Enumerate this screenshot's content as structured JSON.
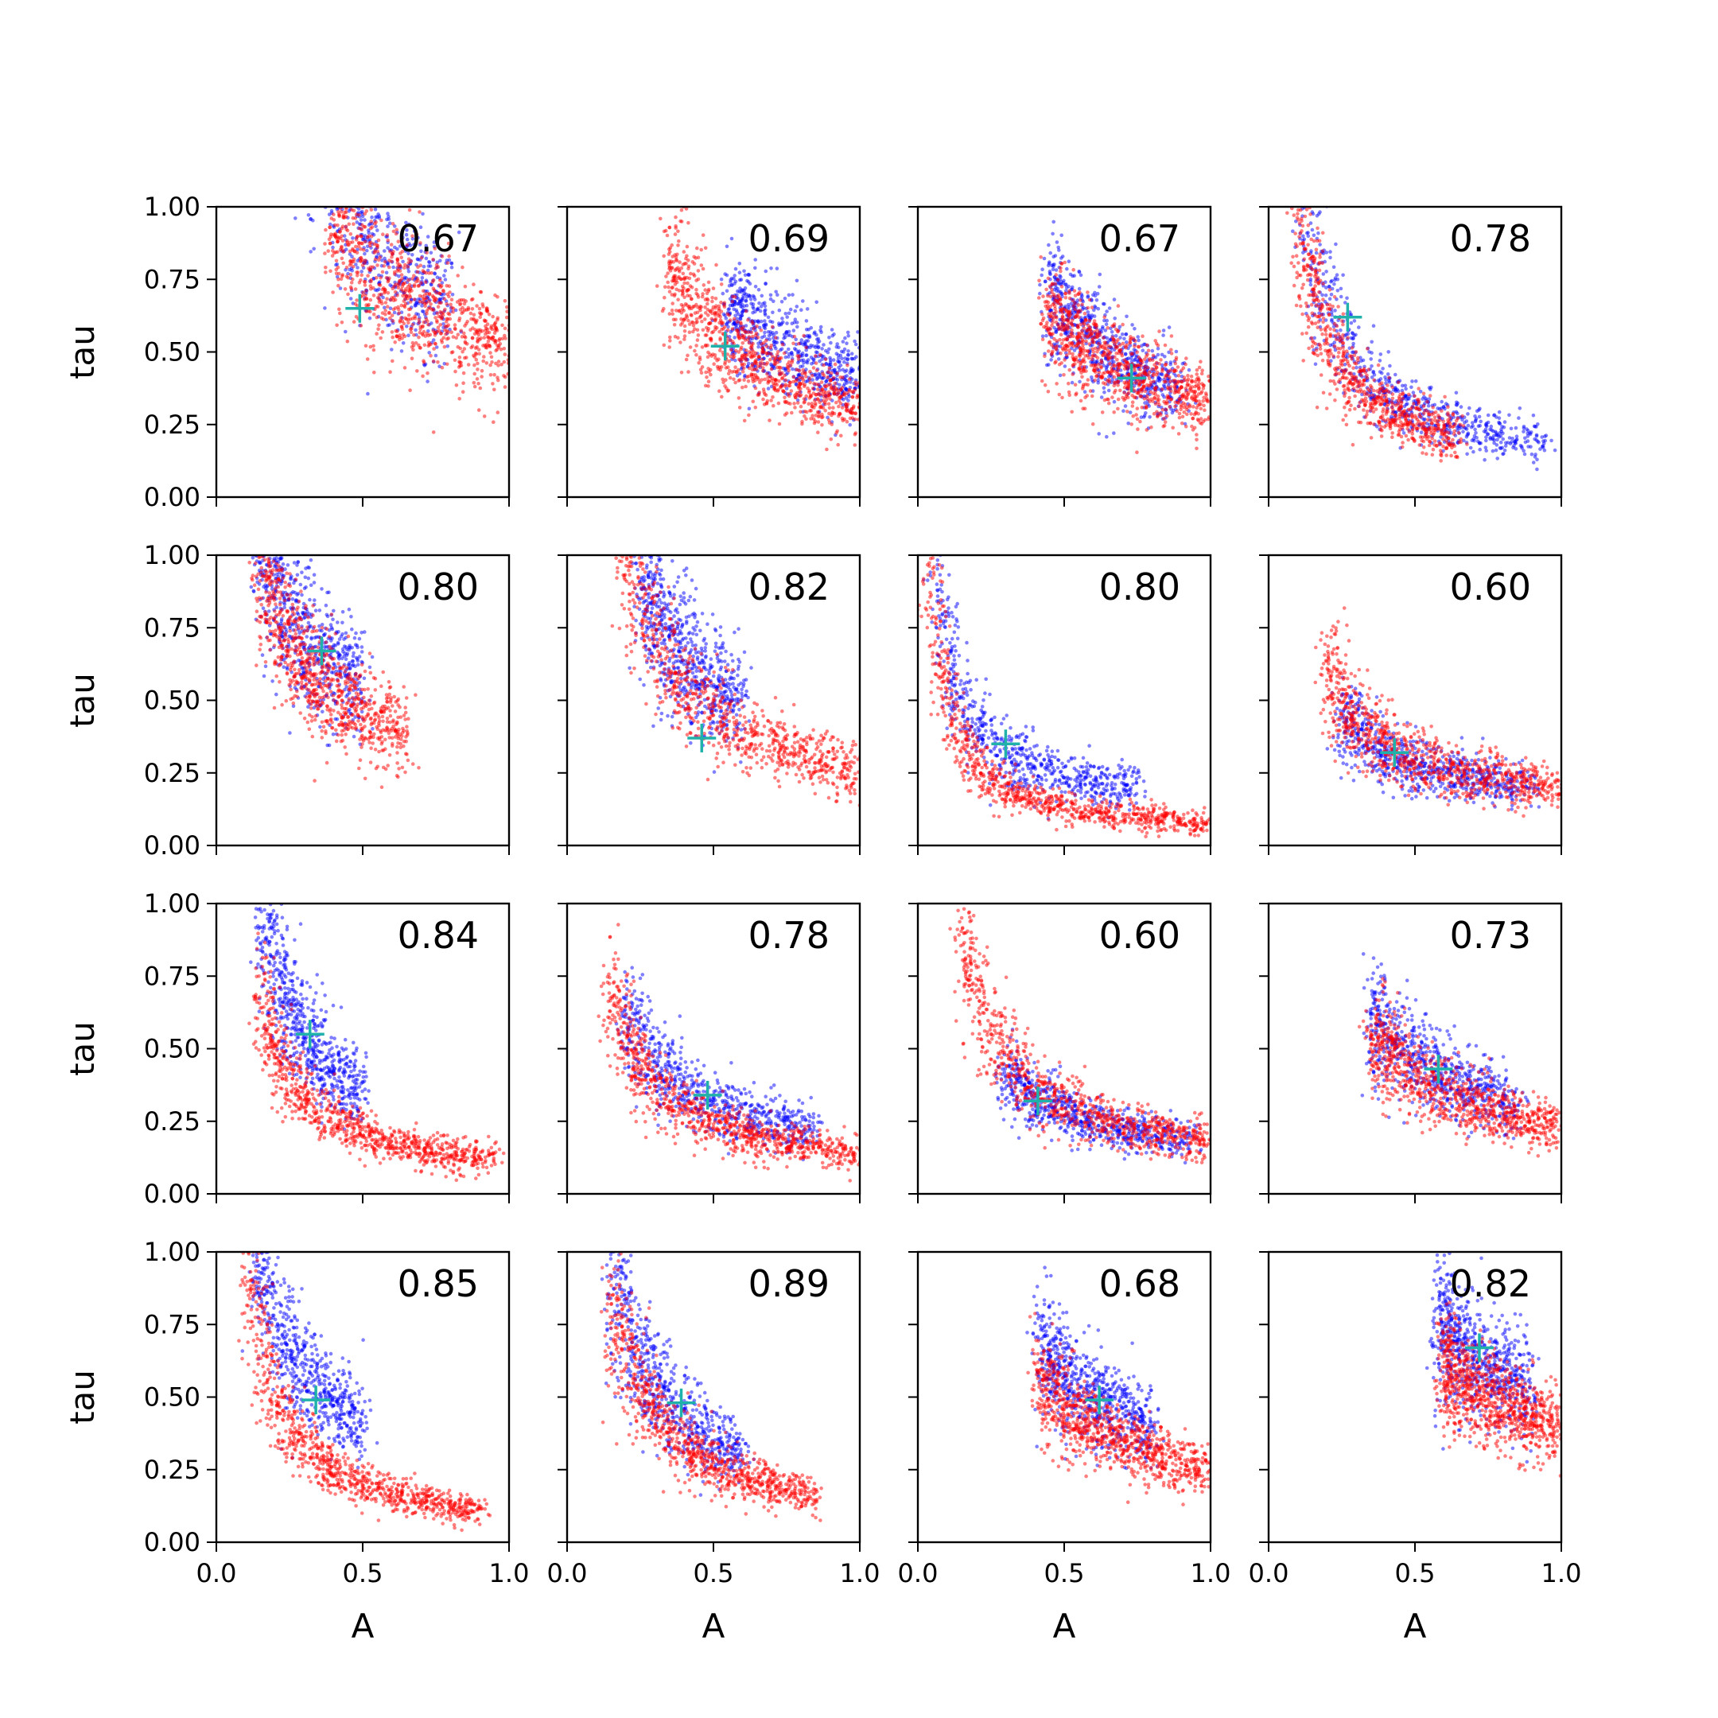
{
  "chart_data": {
    "type": "scatter",
    "layout": {
      "rows": 4,
      "cols": 4
    },
    "xlabel": "A",
    "ylabel": "tau",
    "xlim": [
      0.0,
      1.0
    ],
    "ylim": [
      0.0,
      1.0
    ],
    "xticks": [
      "0.0",
      "0.5",
      "1.0"
    ],
    "yticks": [
      "0.00",
      "0.25",
      "0.50",
      "0.75",
      "1.00"
    ],
    "grid": false,
    "colors": {
      "series_a": "#0000ff",
      "series_b": "#ff0000",
      "marker": "#20b2aa"
    },
    "panels": [
      {
        "label": "0.67",
        "marker": [
          0.49,
          0.65
        ],
        "blue": {
          "a": 0.39,
          "b": 0.17,
          "x0": 0.3,
          "x1": 0.8
        },
        "red": {
          "a": 0.32,
          "b": 0.19,
          "x0": 0.4,
          "x1": 1.0
        }
      },
      {
        "label": "0.69",
        "marker": [
          0.54,
          0.52
        ],
        "blue": {
          "a": 0.3,
          "b": 0.11,
          "x0": 0.55,
          "x1": 1.0
        },
        "red": {
          "a": 0.28,
          "b": 0.02,
          "x0": 0.35,
          "x1": 1.0
        }
      },
      {
        "label": "0.67",
        "marker": [
          0.73,
          0.41
        ],
        "blue": {
          "a": 0.32,
          "b": 0.01,
          "x0": 0.45,
          "x1": 0.9
        },
        "red": {
          "a": 0.25,
          "b": 0.08,
          "x0": 0.45,
          "x1": 1.0
        }
      },
      {
        "label": "0.78",
        "marker": [
          0.27,
          0.62
        ],
        "blue": {
          "a": 0.12,
          "b": 0.06,
          "x0": 0.12,
          "x1": 0.95
        },
        "red": {
          "a": 0.1,
          "b": 0.06,
          "x0": 0.05,
          "x1": 0.65
        }
      },
      {
        "label": "0.80",
        "marker": [
          0.36,
          0.67
        ],
        "blue": {
          "a": 0.13,
          "b": 0.3,
          "x0": 0.15,
          "x1": 0.5
        },
        "red": {
          "a": 0.12,
          "b": 0.22,
          "x0": 0.15,
          "x1": 0.65
        }
      },
      {
        "label": "0.82",
        "marker": [
          0.46,
          0.37
        ],
        "blue": {
          "a": 0.18,
          "b": 0.2,
          "x0": 0.25,
          "x1": 0.6
        },
        "red": {
          "a": 0.19,
          "b": 0.08,
          "x0": 0.15,
          "x1": 1.0
        }
      },
      {
        "label": "0.80",
        "marker": [
          0.3,
          0.35
        ],
        "blue": {
          "a": 0.06,
          "b": 0.12,
          "x0": 0.05,
          "x1": 0.75
        },
        "red": {
          "a": 0.05,
          "b": 0.03,
          "x0": 0.02,
          "x1": 1.0
        }
      },
      {
        "label": "0.60",
        "marker": [
          0.43,
          0.32
        ],
        "blue": {
          "a": 0.08,
          "b": 0.12,
          "x0": 0.25,
          "x1": 0.9
        },
        "red": {
          "a": 0.1,
          "b": 0.1,
          "x0": 0.2,
          "x1": 1.0
        }
      },
      {
        "label": "0.84",
        "marker": [
          0.32,
          0.55
        ],
        "blue": {
          "a": 0.15,
          "b": 0.05,
          "x0": 0.15,
          "x1": 0.5
        },
        "red": {
          "a": 0.1,
          "b": 0.01,
          "x0": 0.15,
          "x1": 0.95
        }
      },
      {
        "label": "0.78",
        "marker": [
          0.48,
          0.34
        ],
        "blue": {
          "a": 0.11,
          "b": 0.09,
          "x0": 0.2,
          "x1": 0.85
        },
        "red": {
          "a": 0.1,
          "b": 0.04,
          "x0": 0.15,
          "x1": 1.0
        }
      },
      {
        "label": "0.60",
        "marker": [
          0.41,
          0.32
        ],
        "blue": {
          "a": 0.1,
          "b": 0.08,
          "x0": 0.3,
          "x1": 0.95
        },
        "red": {
          "a": 0.13,
          "b": 0.05,
          "x0": 0.15,
          "x1": 1.0
        }
      },
      {
        "label": "0.73",
        "marker": [
          0.58,
          0.43
        ],
        "blue": {
          "a": 0.19,
          "b": 0.09,
          "x0": 0.35,
          "x1": 0.85
        },
        "red": {
          "a": 0.18,
          "b": 0.05,
          "x0": 0.35,
          "x1": 1.0
        }
      },
      {
        "label": "0.85",
        "marker": [
          0.34,
          0.49
        ],
        "blue": {
          "a": 0.13,
          "b": 0.15,
          "x0": 0.12,
          "x1": 0.5
        },
        "red": {
          "a": 0.1,
          "b": 0.0,
          "x0": 0.1,
          "x1": 0.9
        }
      },
      {
        "label": "0.89",
        "marker": [
          0.39,
          0.48
        ],
        "blue": {
          "a": 0.14,
          "b": 0.08,
          "x0": 0.15,
          "x1": 0.6
        },
        "red": {
          "a": 0.13,
          "b": 0.01,
          "x0": 0.15,
          "x1": 0.85
        }
      },
      {
        "label": "0.68",
        "marker": [
          0.62,
          0.49
        ],
        "blue": {
          "a": 0.25,
          "b": 0.08,
          "x0": 0.42,
          "x1": 0.8
        },
        "red": {
          "a": 0.22,
          "b": 0.03,
          "x0": 0.42,
          "x1": 1.0
        }
      },
      {
        "label": "0.82",
        "marker": [
          0.72,
          0.67
        ],
        "blue": {
          "a": 0.34,
          "b": 0.15,
          "x0": 0.58,
          "x1": 0.9
        },
        "red": {
          "a": 0.3,
          "b": 0.1,
          "x0": 0.6,
          "x1": 1.0
        }
      }
    ]
  }
}
